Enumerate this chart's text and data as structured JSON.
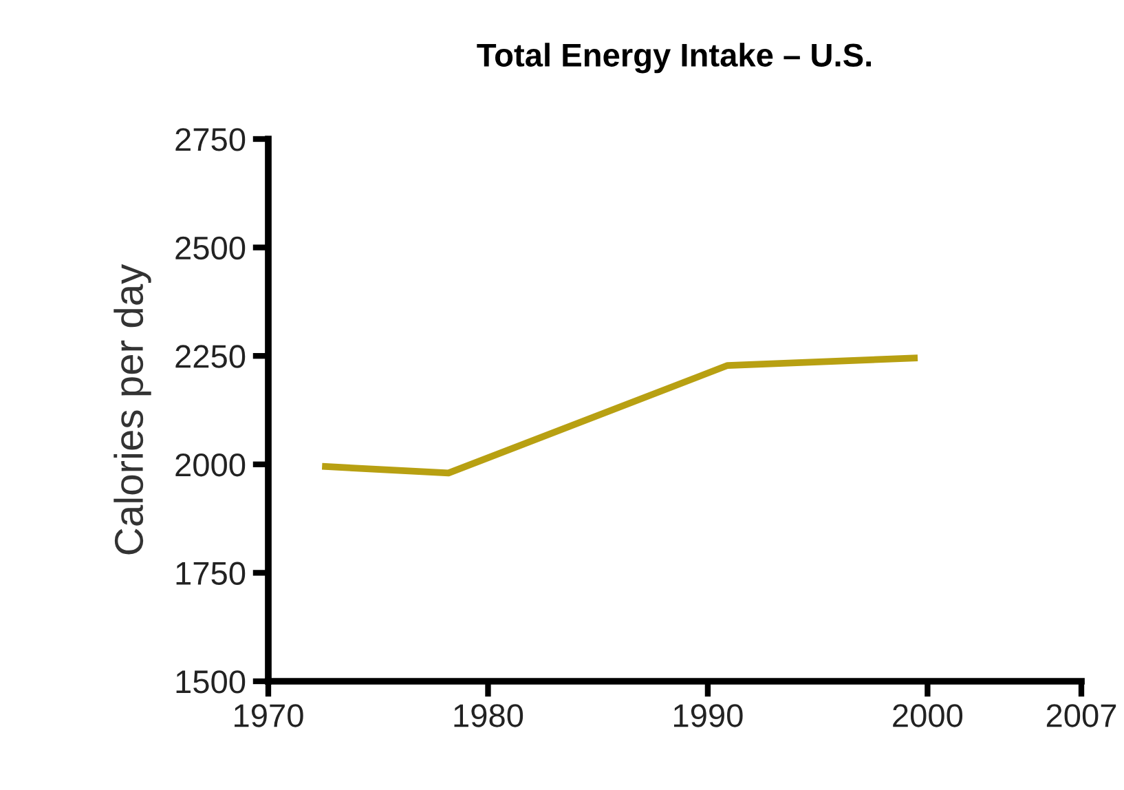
{
  "chart_data": {
    "type": "line",
    "title": "Total Energy Intake – U.S.",
    "ylabel": "Calories per day",
    "x": [
      1972.6,
      1978.2,
      1990.9,
      1999.4
    ],
    "series": [
      {
        "color": "#b8a012",
        "values": [
          1995,
          1980,
          2228,
          2245
        ]
      }
    ],
    "xlim": [
      1970,
      2007
    ],
    "xticks": [
      1970,
      1980,
      1990,
      2000,
      2007
    ],
    "ylim": [
      1500,
      2750
    ],
    "yticks": [
      1500,
      1750,
      2000,
      2250,
      2500,
      2750
    ],
    "grid": false,
    "legend": false,
    "marker": "none",
    "line_style": "solid"
  }
}
